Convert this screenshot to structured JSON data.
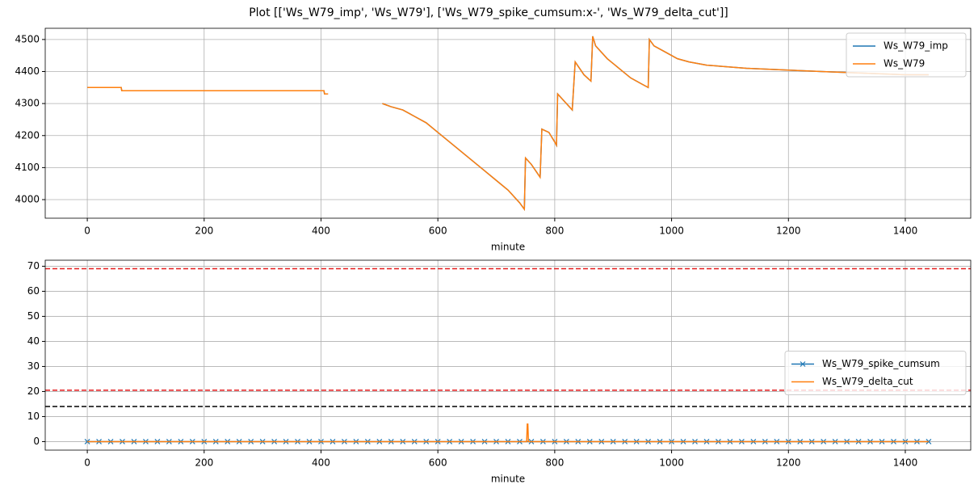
{
  "title": "Plot [['Ws_W79_imp', 'Ws_W79'], ['Ws_W79_spike_cumsum:x-', 'Ws_W79_delta_cut']]",
  "chart_data": [
    {
      "type": "line",
      "xlabel": "minute",
      "xlim": [
        -72,
        1512
      ],
      "ylim": [
        3942,
        4535
      ],
      "xticks": [
        0,
        200,
        400,
        600,
        800,
        1000,
        1200,
        1400
      ],
      "yticks": [
        4000,
        4100,
        4200,
        4300,
        4400,
        4500
      ],
      "grid": true,
      "legend": "upper right",
      "x": [
        0,
        58,
        59,
        405,
        406,
        412,
        413,
        505,
        520,
        540,
        560,
        580,
        600,
        620,
        640,
        660,
        680,
        700,
        720,
        740,
        748,
        750,
        760,
        775,
        778,
        790,
        800,
        803,
        805,
        820,
        830,
        835,
        850,
        862,
        865,
        870,
        890,
        910,
        930,
        950,
        960,
        962,
        970,
        990,
        1010,
        1030,
        1060,
        1128,
        1256,
        1400,
        1440
      ],
      "series": [
        {
          "name": "Ws_W79_imp",
          "color": "#1f77b4",
          "values": [
            4350,
            4350,
            4340,
            4340,
            4330,
            4330,
            null,
            4300,
            4290,
            4280,
            4260,
            4240,
            4210,
            4180,
            4150,
            4120,
            4090,
            4060,
            4030,
            3990,
            3970,
            4130,
            4110,
            4070,
            4220,
            4210,
            4180,
            4170,
            4330,
            4300,
            4280,
            4430,
            4390,
            4370,
            4510,
            4480,
            4440,
            4410,
            4380,
            4360,
            4350,
            4500,
            4480,
            4460,
            4440,
            4430,
            4420,
            4410,
            4400,
            4390,
            4390
          ]
        },
        {
          "name": "Ws_W79",
          "color": "#ff7f0e",
          "values": [
            4350,
            4350,
            4340,
            4340,
            4330,
            4330,
            null,
            4300,
            4290,
            4280,
            4260,
            4240,
            4210,
            4180,
            4150,
            4120,
            4090,
            4060,
            4030,
            3990,
            3970,
            4130,
            4110,
            4070,
            4220,
            4210,
            4180,
            4170,
            4330,
            4300,
            4280,
            4430,
            4390,
            4370,
            4510,
            4480,
            4440,
            4410,
            4380,
            4360,
            4350,
            4500,
            4480,
            4460,
            4440,
            4430,
            4420,
            4410,
            4400,
            4390,
            4390
          ]
        }
      ]
    },
    {
      "type": "line",
      "xlabel": "minute",
      "xlim": [
        -72,
        1512
      ],
      "ylim": [
        -3.4,
        72.4
      ],
      "xticks": [
        0,
        200,
        400,
        600,
        800,
        1000,
        1200,
        1400
      ],
      "yticks": [
        0,
        10,
        20,
        30,
        40,
        50,
        60,
        70
      ],
      "grid": true,
      "legend": "center right",
      "series": [
        {
          "name": "Ws_W79_spike_cumsum",
          "color": "#1f77b4",
          "marker": "x",
          "x": [
            0,
            20,
            40,
            60,
            80,
            100,
            120,
            140,
            160,
            180,
            200,
            220,
            240,
            260,
            280,
            300,
            320,
            340,
            360,
            380,
            400,
            420,
            440,
            460,
            480,
            500,
            520,
            540,
            560,
            580,
            600,
            620,
            640,
            660,
            680,
            700,
            720,
            740,
            760,
            780,
            800,
            820,
            840,
            860,
            880,
            900,
            920,
            940,
            960,
            980,
            1000,
            1020,
            1040,
            1060,
            1080,
            1100,
            1120,
            1140,
            1160,
            1180,
            1200,
            1220,
            1240,
            1260,
            1280,
            1300,
            1320,
            1340,
            1360,
            1380,
            1400,
            1420,
            1440
          ],
          "values": [
            0,
            0,
            0,
            0,
            0,
            0,
            0,
            0,
            0,
            0,
            0,
            0,
            0,
            0,
            0,
            0,
            0,
            0,
            0,
            0,
            0,
            0,
            0,
            0,
            0,
            0,
            0,
            0,
            0,
            0,
            0,
            0,
            0,
            0,
            0,
            0,
            0,
            0,
            0,
            0,
            0,
            0,
            0,
            0,
            0,
            0,
            0,
            0,
            0,
            0,
            0,
            0,
            0,
            0,
            0,
            0,
            0,
            0,
            0,
            0,
            0,
            0,
            0,
            0,
            0,
            0,
            0,
            0,
            0,
            0,
            0,
            0,
            0
          ]
        },
        {
          "name": "Ws_W79_delta_cut",
          "color": "#ff7f0e",
          "x": [
            0,
            752,
            753,
            754,
            755,
            1440
          ],
          "values": [
            0,
            0,
            7,
            7,
            0,
            0
          ]
        }
      ],
      "hlines": [
        {
          "value": 69,
          "color": "#e41a1c"
        },
        {
          "value": 20.5,
          "color": "#e41a1c"
        },
        {
          "value": 14,
          "color": "#000000"
        }
      ]
    }
  ]
}
